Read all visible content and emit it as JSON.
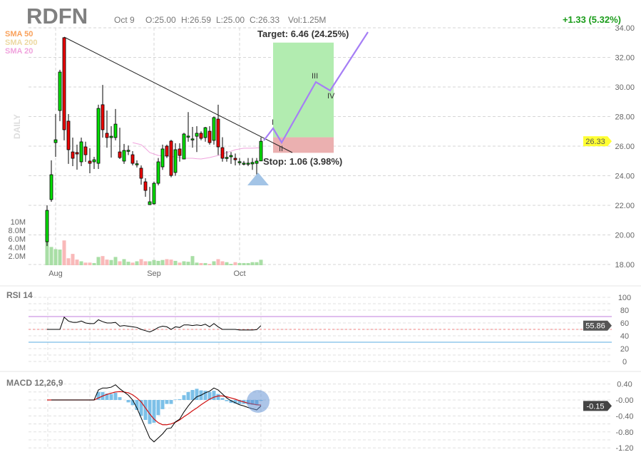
{
  "header": {
    "symbol": "RDFN",
    "date": "Oct 9",
    "open": "O:25.00",
    "high": "H:26.59",
    "low": "L:25.00",
    "close": "C:26.33",
    "volume": "Vol:1.25M",
    "change": "+1.33 (5.32%)"
  },
  "legend": {
    "sma50": "SMA 50",
    "sma200": "SMA 200",
    "sma20": "SMA 20",
    "timeframe": "DAILY"
  },
  "colors": {
    "up": "#00e000",
    "down": "#ee0000",
    "vol_up": "#a8dea5",
    "vol_down": "#f9b9b9",
    "sma50": "#f9a15a",
    "sma200": "#ecd9a2",
    "sma20": "#f0a3dd",
    "wave": "#a57ef5",
    "target_zone": "#b2ecb0",
    "stop_zone": "#ebb0b0",
    "change_text": "#1a9c1a",
    "price_badge": "#ffff33",
    "rsi_overbought": "#c27ddc",
    "rsi_oversold": "#5aaee0",
    "macd_hist": "#7cc0e8",
    "macd_signal": "#d01010"
  },
  "annotations": {
    "target": "Target: 6.46 (24.25%)",
    "stop": "Stop: 1.06 (3.98%)",
    "waves": [
      "I",
      "II",
      "III",
      "IV"
    ]
  },
  "chart_data": [
    {
      "type": "candlestick",
      "title": "RDFN",
      "x_labels": [
        "Aug",
        "Sep",
        "Oct"
      ],
      "y_ticks": [
        "34.00",
        "32.00",
        "30.00",
        "28.00",
        "26.00",
        "24.00",
        "22.00",
        "20.00",
        "18.00"
      ],
      "ylim": [
        18,
        34
      ],
      "last_price": "26.33",
      "ohlc": [
        [
          19.54,
          22.0,
          19.25,
          21.66
        ],
        [
          22.39,
          25.04,
          22.24,
          24.07
        ],
        [
          26.24,
          28.17,
          25.28,
          26.43
        ],
        [
          28.41,
          31.16,
          27.69,
          31.01
        ],
        [
          33.33,
          33.37,
          26.39,
          27.11
        ],
        [
          27.69,
          28.17,
          24.8,
          25.76
        ],
        [
          25.61,
          26.58,
          24.65,
          25.18
        ],
        [
          25.57,
          26.1,
          24.41,
          25.47
        ],
        [
          24.94,
          26.58,
          24.65,
          26.29
        ],
        [
          25.95,
          26.3,
          24.94,
          25.42
        ],
        [
          24.99,
          25.86,
          24.17,
          24.84
        ],
        [
          24.94,
          25.28,
          24.46,
          25.08
        ],
        [
          24.84,
          28.8,
          24.46,
          28.55
        ],
        [
          28.8,
          30.14,
          26.58,
          27.11
        ],
        [
          26.87,
          28.41,
          25.9,
          26.58
        ],
        [
          26.58,
          27.35,
          25.23,
          26.67
        ],
        [
          26.58,
          28.51,
          26.39,
          27.49
        ],
        [
          25.61,
          27.25,
          25.13,
          25.23
        ],
        [
          24.99,
          26.15,
          24.8,
          25.71
        ],
        [
          25.7,
          26.05,
          25.4,
          25.72
        ],
        [
          25.42,
          25.66,
          24.7,
          24.84
        ],
        [
          24.79,
          25.04,
          24.56,
          24.81
        ],
        [
          24.51,
          24.7,
          23.4,
          23.83
        ],
        [
          23.59,
          23.83,
          22.58,
          23.01
        ],
        [
          22.05,
          23.25,
          22.05,
          22.24
        ],
        [
          22.1,
          23.6,
          22.05,
          23.49
        ],
        [
          23.49,
          25.2,
          23.35,
          24.94
        ],
        [
          24.6,
          26.1,
          24.4,
          25.81
        ],
        [
          26.0,
          26.1,
          25.2,
          25.33
        ],
        [
          26.34,
          26.43,
          23.9,
          24.02
        ],
        [
          24.22,
          26.2,
          24.0,
          25.76
        ],
        [
          25.81,
          26.2,
          24.95,
          25.37
        ],
        [
          25.13,
          26.9,
          25.13,
          26.82
        ],
        [
          26.66,
          28.3,
          26.3,
          26.68
        ],
        [
          26.47,
          27.3,
          25.9,
          26.49
        ],
        [
          26.67,
          27.35,
          25.6,
          26.87
        ],
        [
          26.87,
          27.0,
          26.4,
          26.53
        ],
        [
          26.58,
          27.3,
          26.3,
          27.25
        ],
        [
          27.01,
          27.35,
          26.1,
          26.24
        ],
        [
          26.39,
          28.0,
          26.1,
          27.93
        ],
        [
          27.83,
          28.8,
          25.4,
          25.95
        ],
        [
          25.9,
          26.6,
          24.95,
          25.18
        ],
        [
          25.22,
          25.66,
          24.95,
          25.24
        ],
        [
          25.28,
          25.6,
          24.8,
          25.37
        ],
        [
          25.18,
          25.5,
          24.7,
          25.08
        ],
        [
          24.93,
          25.2,
          24.7,
          24.95
        ],
        [
          24.83,
          25.0,
          24.7,
          24.85
        ],
        [
          24.83,
          25.2,
          24.65,
          24.85
        ],
        [
          24.8,
          25.2,
          24.4,
          24.9
        ],
        [
          24.84,
          25.2,
          23.98,
          24.99
        ],
        [
          25.0,
          26.59,
          25.0,
          26.33
        ]
      ],
      "volume_ticks": [
        "10M",
        "8.0M",
        "6.0M",
        "4.0M",
        "2.0M"
      ],
      "volume_millions": [
        5.4,
        4.2,
        3.7,
        3.6,
        5.7,
        1.6,
        2.6,
        1.3,
        0.9,
        0.6,
        0.6,
        0.5,
        1.9,
        2.1,
        1.3,
        1.2,
        1.9,
        0.9,
        1.4,
        0.8,
        0.6,
        0.9,
        1.4,
        0.9,
        0.9,
        1.2,
        1.0,
        1.2,
        1.4,
        1.3,
        1.0,
        0.6,
        0.9,
        0.8,
        2.1,
        0.6,
        0.5,
        0.5,
        0.3,
        0.9,
        1.4,
        0.9,
        0.7,
        0.3,
        0.7,
        0.5,
        0.5,
        0.5,
        0.7,
        0.7,
        1.25
      ],
      "sma20_from_bar_21": [
        26.24,
        26.17,
        26.1,
        25.85,
        25.57,
        25.47,
        25.37,
        25.35,
        25.33,
        25.3,
        25.28,
        25.23,
        25.18,
        25.18,
        25.18,
        25.15,
        25.13,
        25.18,
        25.23,
        25.3,
        25.37,
        25.47,
        25.57,
        25.66,
        25.76,
        25.81,
        25.86,
        25.86,
        25.86,
        25.88,
        25.9
      ],
      "target_zone_price": [
        26.6,
        33.0
      ],
      "stop_zone_price": [
        25.55,
        26.6
      ]
    },
    {
      "type": "line",
      "title": "RSI 14",
      "y_ticks": [
        "100",
        "80",
        "60",
        "40",
        "20",
        "0"
      ],
      "ylim": [
        0,
        100
      ],
      "levels": {
        "overbought": 70,
        "midline": 50,
        "oversold": 30
      },
      "last_value": "55.86",
      "values": [
        50,
        50,
        50,
        50,
        69,
        63,
        61,
        61,
        63,
        60,
        59,
        59,
        65,
        62,
        60,
        60,
        61,
        55,
        56,
        55,
        54,
        53,
        50,
        48,
        46,
        49,
        53,
        55,
        54,
        50,
        54,
        53,
        57,
        57,
        56,
        57,
        56,
        58,
        54,
        59,
        54,
        50,
        50,
        50,
        50,
        49,
        49,
        49,
        49,
        49.5,
        55.86
      ]
    },
    {
      "type": "line",
      "title": "MACD 12,26,9",
      "y_ticks": [
        "0.40",
        "-0.00",
        "-0.40",
        "-0.80",
        "-1.20"
      ],
      "ylim": [
        -1.2,
        0.4
      ],
      "last_value": "-0.15",
      "macd": [
        0,
        0,
        0,
        0,
        0,
        0,
        0,
        0,
        0,
        0,
        0,
        0,
        0.25,
        0.3,
        0.3,
        0.32,
        0.38,
        0.28,
        0.2,
        0.12,
        0.0,
        -0.2,
        -0.45,
        -0.7,
        -0.95,
        -1.05,
        -0.95,
        -0.85,
        -0.72,
        -0.7,
        -0.55,
        -0.48,
        -0.3,
        -0.15,
        -0.02,
        0.08,
        0.12,
        0.18,
        0.22,
        0.3,
        0.25,
        0.15,
        0.05,
        -0.02,
        -0.07,
        -0.12,
        -0.15,
        -0.19,
        -0.22,
        -0.25,
        -0.15
      ],
      "signal": [
        0,
        0,
        0,
        0,
        0,
        0,
        0,
        0,
        0,
        0,
        0,
        0,
        0.05,
        0.1,
        0.14,
        0.17,
        0.2,
        0.21,
        0.2,
        0.18,
        0.13,
        0.05,
        -0.05,
        -0.2,
        -0.35,
        -0.48,
        -0.57,
        -0.62,
        -0.62,
        -0.6,
        -0.56,
        -0.5,
        -0.42,
        -0.35,
        -0.27,
        -0.2,
        -0.12,
        -0.05,
        0.02,
        0.07,
        0.1,
        0.1,
        0.08,
        0.05,
        0.02,
        -0.02,
        -0.05,
        -0.08,
        -0.1,
        -0.12,
        -0.13
      ]
    }
  ]
}
